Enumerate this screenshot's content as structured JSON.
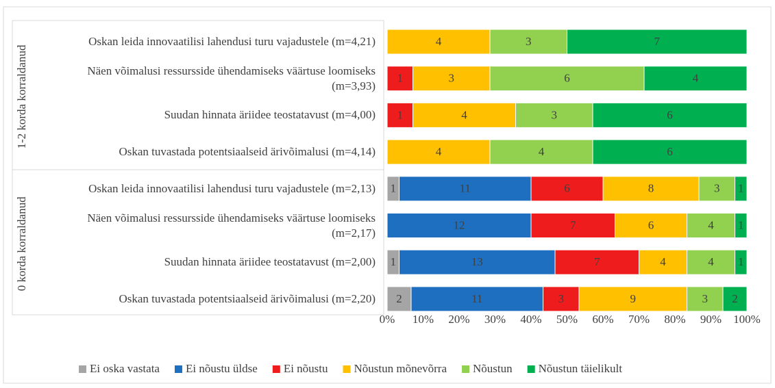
{
  "chart_data": {
    "type": "stacked_bar_100",
    "orientation": "horizontal",
    "groups": [
      "1-2 korda korraldanud",
      "0 korda korraldanud"
    ],
    "categories": [
      "Oskan leida innovaatilisi lahendusi turu vajadustele (m=4,21)",
      "Näen võimalusi ressursside ühendamiseks väärtuse loomiseks (m=3,93)",
      "Suudan hinnata äriidee teostatavust (m=4,00)",
      "Oskan tuvastada potentsiaalseid ärivõimalusi (m=4,14)",
      "Oskan leida innovaatilisi lahendusi turu vajadustele (m=2,13)",
      "Näen võimalusi ressursside ühendamiseks väärtuse loomiseks (m=2,17)",
      "Suudan hinnata äriidee teostatavust (m=2,00)",
      "Oskan tuvastada potentsiaalseid ärivõimalusi (m=2,20)"
    ],
    "series": [
      {
        "name": "Ei oska vastata",
        "color": "#a5a5a5",
        "values": [
          null,
          null,
          null,
          null,
          1,
          null,
          1,
          2
        ]
      },
      {
        "name": "Ei nõustu üldse",
        "color": "#1f6fc0",
        "values": [
          null,
          null,
          null,
          null,
          11,
          12,
          13,
          11
        ]
      },
      {
        "name": "Ei nõustu",
        "color": "#ee1c1c",
        "values": [
          null,
          1,
          1,
          null,
          6,
          7,
          7,
          3
        ]
      },
      {
        "name": "Nõustun mõnevõrra",
        "color": "#ffc000",
        "values": [
          4,
          3,
          4,
          4,
          8,
          6,
          4,
          9
        ]
      },
      {
        "name": "Nõustun",
        "color": "#92d050",
        "values": [
          3,
          6,
          3,
          4,
          3,
          4,
          4,
          3
        ]
      },
      {
        "name": "Nõustun täielikult",
        "color": "#00b050",
        "values": [
          7,
          4,
          6,
          6,
          1,
          1,
          1,
          2
        ]
      }
    ],
    "xlim": [
      0,
      100
    ],
    "xticks": [
      {
        "value": 0,
        "label": "0%"
      },
      {
        "value": 10,
        "label": "10%"
      },
      {
        "value": 20,
        "label": "20%"
      },
      {
        "value": 30,
        "label": "30%"
      },
      {
        "value": 40,
        "label": "40%"
      },
      {
        "value": 50,
        "label": "50%"
      },
      {
        "value": 60,
        "label": "60%"
      },
      {
        "value": 70,
        "label": "70%"
      },
      {
        "value": 80,
        "label": "80%"
      },
      {
        "value": 90,
        "label": "90%"
      },
      {
        "value": 100,
        "label": "100%"
      }
    ],
    "legend": "bottom"
  }
}
